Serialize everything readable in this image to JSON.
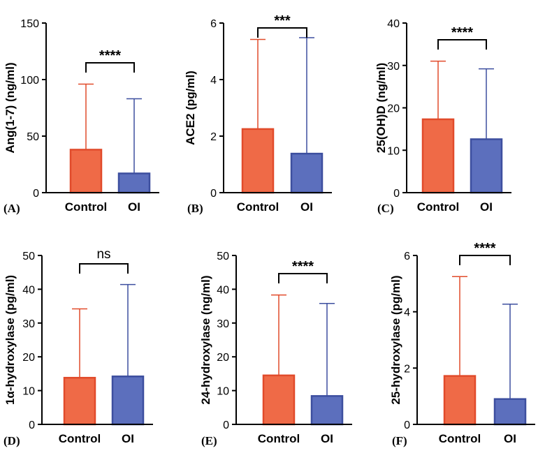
{
  "colors": {
    "control_fill": "#ef6a47",
    "control_stroke": "#e14b2b",
    "oi_fill": "#5c6fbd",
    "oi_stroke": "#3d4f9f"
  },
  "chart_data": [
    {
      "type": "bar",
      "panel": "(A)",
      "ylabel": "Ang(1-7) (ng/ml)",
      "categories": [
        "Control",
        "OI"
      ],
      "values": [
        38,
        17
      ],
      "error_upper": [
        96,
        83
      ],
      "ylim": [
        0,
        150
      ],
      "yticks": [
        0,
        50,
        100,
        150
      ],
      "significance": "****"
    },
    {
      "type": "bar",
      "panel": "(B)",
      "ylabel": "ACE2 (pg/ml)",
      "categories": [
        "Control",
        "OI"
      ],
      "values": [
        2.25,
        1.38
      ],
      "error_upper": [
        5.42,
        5.48
      ],
      "ylim": [
        0,
        6
      ],
      "yticks": [
        0,
        2,
        4,
        6
      ],
      "significance": "***"
    },
    {
      "type": "bar",
      "panel": "(C)",
      "ylabel": "25(OH)D (ng/ml)",
      "categories": [
        "Control",
        "OI"
      ],
      "values": [
        17.3,
        12.6
      ],
      "error_upper": [
        31,
        29.2
      ],
      "ylim": [
        0,
        40
      ],
      "yticks": [
        0,
        10,
        20,
        30,
        40
      ],
      "significance": "****"
    },
    {
      "type": "bar",
      "panel": "(D)",
      "ylabel": "1α-hydroxylase (pg/ml)",
      "categories": [
        "Control",
        "OI"
      ],
      "values": [
        13.8,
        14.2
      ],
      "error_upper": [
        34.2,
        41.4
      ],
      "ylim": [
        0,
        50
      ],
      "yticks": [
        0,
        10,
        20,
        30,
        40,
        50
      ],
      "significance": "ns"
    },
    {
      "type": "bar",
      "panel": "(E)",
      "ylabel": "24-hydroxylase (ng/ml)",
      "categories": [
        "Control",
        "OI"
      ],
      "values": [
        14.5,
        8.4
      ],
      "error_upper": [
        38.3,
        35.8
      ],
      "ylim": [
        0,
        50
      ],
      "yticks": [
        0,
        10,
        20,
        30,
        40,
        50
      ],
      "significance": "****"
    },
    {
      "type": "bar",
      "panel": "(F)",
      "ylabel": "25-hydroxylase (pg/ml)",
      "categories": [
        "Control",
        "OI"
      ],
      "values": [
        1.72,
        0.9
      ],
      "error_upper": [
        5.25,
        4.27
      ],
      "ylim": [
        0,
        6
      ],
      "yticks": [
        0,
        2,
        4,
        6
      ],
      "significance": "****"
    }
  ]
}
